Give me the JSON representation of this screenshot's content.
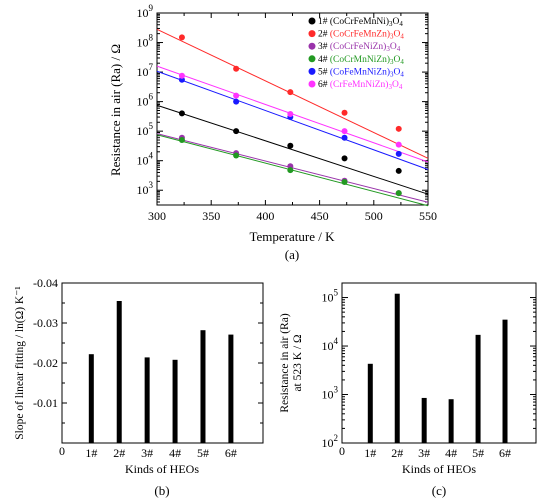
{
  "chart_data": [
    {
      "panel_label": "(a)",
      "type": "scatter",
      "xlabel": "Temperature / K",
      "ylabel": "Resistance in air (Ra) / Ω",
      "xlim": [
        300,
        550
      ],
      "ylim_log10": [
        2.5,
        9
      ],
      "y_scale": "log",
      "x_ticks": [
        "300",
        "350",
        "400",
        "450",
        "500",
        "550"
      ],
      "y_ticks": [
        {
          "base": "10",
          "exp": "3"
        },
        {
          "base": "10",
          "exp": "4"
        },
        {
          "base": "10",
          "exp": "5"
        },
        {
          "base": "10",
          "exp": "6"
        },
        {
          "base": "10",
          "exp": "7"
        },
        {
          "base": "10",
          "exp": "8"
        },
        {
          "base": "10",
          "exp": "9"
        }
      ],
      "legend_position": "top-right",
      "series": [
        {
          "id": "1#",
          "name": "1# (CoCrFeMnNi)3O4",
          "color": "#000000",
          "x": [
            323,
            373,
            423,
            473,
            523
          ],
          "y": [
            400000,
            100000,
            32000,
            12000,
            4500
          ],
          "fit_y": [
            450000,
            100000,
            22000,
            4800,
            2000
          ]
        },
        {
          "id": "2#",
          "name": "2# (CoCrFeMnZn)3O4",
          "color": "#ff2a2a",
          "x": [
            323,
            373,
            423,
            473,
            523
          ],
          "y": [
            150000000,
            13000000,
            2100000,
            420000,
            120000
          ],
          "fit_y": [
            140000000,
            14000000,
            1600000,
            200000,
            50000
          ]
        },
        {
          "id": "3#",
          "name": "3# (CoCrFeNiZn)3O4",
          "color": "#9933aa",
          "x": [
            323,
            373,
            423,
            473,
            523
          ],
          "y": [
            60000,
            18000,
            6500,
            2100,
            800
          ],
          "fit_y": [
            55000,
            17000,
            5500,
            1800,
            800
          ]
        },
        {
          "id": "4#",
          "name": "4# (CoCrMnNiZn)3O4",
          "color": "#229922",
          "x": [
            323,
            373,
            423,
            473,
            523
          ],
          "y": [
            50000,
            15000,
            4800,
            1900,
            800
          ],
          "fit_y": [
            48000,
            15000,
            4700,
            1500,
            600
          ]
        },
        {
          "id": "5#",
          "name": "5# (CoFeMnNiZn)3O4",
          "color": "#1a1aff",
          "x": [
            323,
            373,
            423,
            473,
            523
          ],
          "y": [
            5500000,
            1000000,
            300000,
            60000,
            17000
          ],
          "fit_y": [
            6000000,
            1100000,
            220000,
            45000,
            14000
          ]
        },
        {
          "id": "6#",
          "name": "6# (CrFeMnNiZn)3O4",
          "color": "#ff33ff",
          "x": [
            323,
            373,
            423,
            473,
            523
          ],
          "y": [
            7500000,
            1600000,
            380000,
            100000,
            35000
          ],
          "fit_y": [
            9000000,
            1800000,
            350000,
            75000,
            25000
          ]
        }
      ]
    },
    {
      "panel_label": "(b)",
      "type": "bar",
      "xlabel": "Kinds of HEOs",
      "ylabel": "Slope of linear fitting / ln(Ω) K⁻¹",
      "ylim": [
        0,
        -0.04
      ],
      "y_ticks": [
        "0",
        "-0.01",
        "-0.02",
        "-0.03",
        "-0.04"
      ],
      "categories": [
        "1#",
        "2#",
        "3#",
        "4#",
        "5#",
        "6#"
      ],
      "values": [
        -0.0222,
        -0.0355,
        -0.0214,
        -0.0208,
        -0.0282,
        -0.0271
      ],
      "x_zero_label": "0"
    },
    {
      "panel_label": "(c)",
      "type": "bar",
      "xlabel": "Kinds of HEOs",
      "ylabel_line1": "Resistance in air (Ra)",
      "ylabel_line2": "at 523 K / Ω",
      "y_scale": "log",
      "ylim_log10": [
        2,
        5.3
      ],
      "y_ticks": [
        {
          "base": "10",
          "exp": "2"
        },
        {
          "base": "10",
          "exp": "3"
        },
        {
          "base": "10",
          "exp": "4"
        },
        {
          "base": "10",
          "exp": "5"
        }
      ],
      "categories": [
        "1#",
        "2#",
        "3#",
        "4#",
        "5#",
        "6#"
      ],
      "values": [
        4300,
        120000,
        850,
        800,
        17000,
        35000
      ],
      "x_zero_label": "0"
    }
  ]
}
